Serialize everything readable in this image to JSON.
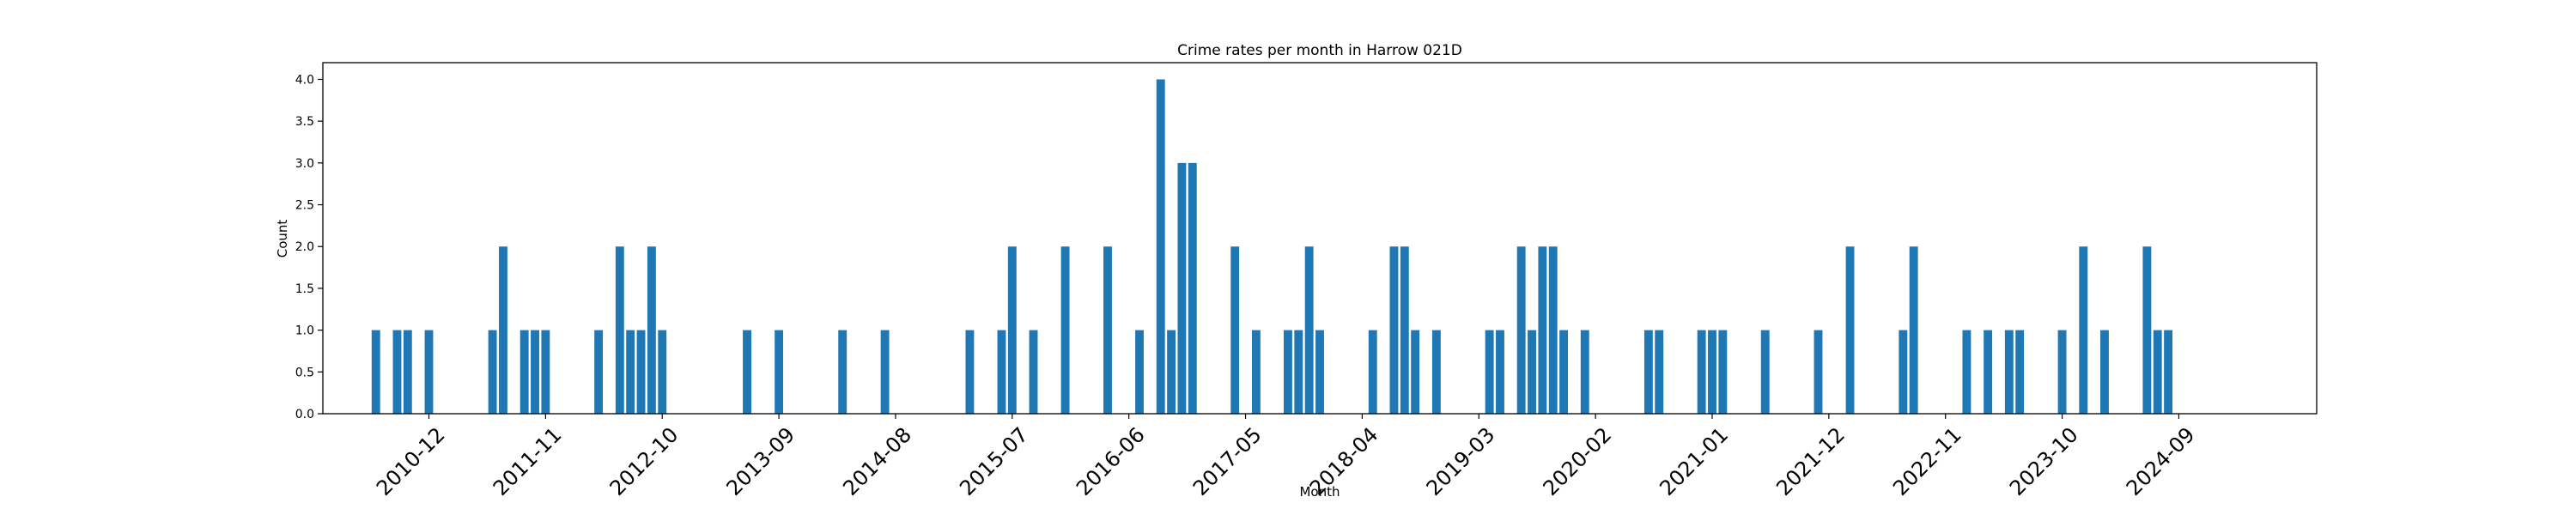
{
  "chart_data": {
    "type": "bar",
    "title": "Crime rates per month in Harrow 021D",
    "xlabel": "Month",
    "ylabel": "Count",
    "ylim": [
      0,
      4.2
    ],
    "xlim": [
      "2010-02",
      "2025-10"
    ],
    "grid": false,
    "legend": "none",
    "bar_color": "#1f77b4",
    "y_ticks": [
      0.0,
      0.5,
      1.0,
      1.5,
      2.0,
      2.5,
      3.0,
      3.5,
      4.0
    ],
    "y_tick_labels": [
      "0.0",
      "0.5",
      "1.0",
      "1.5",
      "2.0",
      "2.5",
      "3.0",
      "3.5",
      "4.0"
    ],
    "x_tick_labels": [
      "2010-12",
      "2011-11",
      "2012-10",
      "2013-09",
      "2014-08",
      "2015-07",
      "2016-06",
      "2017-05",
      "2018-04",
      "2019-03",
      "2020-02",
      "2021-01",
      "2021-12",
      "2022-11",
      "2023-10",
      "2024-09"
    ],
    "x": [
      "2010-07",
      "2010-09",
      "2010-10",
      "2010-12",
      "2011-06",
      "2011-07",
      "2011-09",
      "2011-10",
      "2011-11",
      "2012-04",
      "2012-06",
      "2012-07",
      "2012-08",
      "2012-09",
      "2012-10",
      "2013-06",
      "2013-09",
      "2014-03",
      "2014-07",
      "2015-03",
      "2015-06",
      "2015-07",
      "2015-09",
      "2016-00",
      "2016-04",
      "2016-07",
      "2016-09",
      "2016-10",
      "2016-11",
      "2016-12",
      "2017-04",
      "2017-06",
      "2017-09",
      "2017-10",
      "2017-11",
      "2017-12",
      "2018-05",
      "2018-07",
      "2018-08",
      "2018-09",
      "2018-11",
      "2019-04",
      "2019-05",
      "2019-07",
      "2019-08",
      "2019-09",
      "2019-10",
      "2019-11",
      "2020-01",
      "2020-07",
      "2020-08",
      "2020-12",
      "2021-01",
      "2021-02",
      "2021-06",
      "2021-11",
      "2022-02",
      "2022-07",
      "2022-08",
      "2023-01",
      "2023-03",
      "2023-05",
      "2023-06",
      "2023-10",
      "2023-12",
      "2024-02",
      "2024-06",
      "2024-07",
      "2024-08"
    ],
    "values": [
      1,
      1,
      1,
      1,
      1,
      2,
      1,
      1,
      1,
      1,
      2,
      1,
      1,
      2,
      1,
      1,
      1,
      1,
      1,
      1,
      1,
      2,
      1,
      2,
      2,
      1,
      4,
      1,
      3,
      3,
      2,
      1,
      1,
      1,
      2,
      1,
      1,
      2,
      2,
      1,
      1,
      1,
      1,
      2,
      1,
      2,
      2,
      1,
      1,
      1,
      1,
      1,
      1,
      1,
      1,
      1,
      2,
      1,
      2,
      1,
      1,
      1,
      1,
      1,
      2,
      1,
      2,
      1,
      1
    ]
  }
}
